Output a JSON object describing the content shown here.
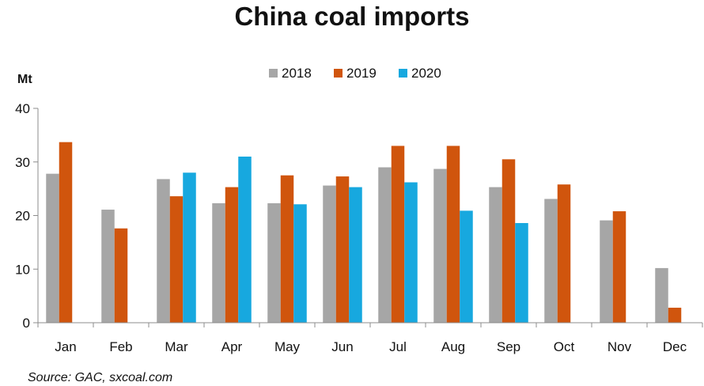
{
  "chart_data": {
    "type": "bar",
    "title": "China coal imports",
    "ylabel": "Mt",
    "xlabel": "",
    "ylim": [
      0,
      40
    ],
    "yticks": [
      0,
      10,
      20,
      30,
      40
    ],
    "grid": false,
    "legend_position": "top",
    "categories": [
      "Jan",
      "Feb",
      "Mar",
      "Apr",
      "May",
      "Jun",
      "Jul",
      "Aug",
      "Sep",
      "Oct",
      "Nov",
      "Dec"
    ],
    "series": [
      {
        "name": "2018",
        "color": "#a6a6a6",
        "values": [
          27.8,
          21.1,
          26.8,
          22.3,
          22.3,
          25.6,
          29.0,
          28.7,
          25.3,
          23.1,
          19.1,
          10.2
        ]
      },
      {
        "name": "2019",
        "color": "#d0550d",
        "values": [
          33.7,
          17.6,
          23.6,
          25.3,
          27.5,
          27.3,
          33.0,
          33.0,
          30.5,
          25.8,
          20.8,
          2.8
        ]
      },
      {
        "name": "2020",
        "color": "#17a8df",
        "values": [
          null,
          null,
          28.0,
          31.0,
          22.1,
          25.3,
          26.2,
          20.9,
          18.6,
          null,
          null,
          null
        ]
      }
    ],
    "source": "Source:  GAC, sxcoal.com"
  }
}
